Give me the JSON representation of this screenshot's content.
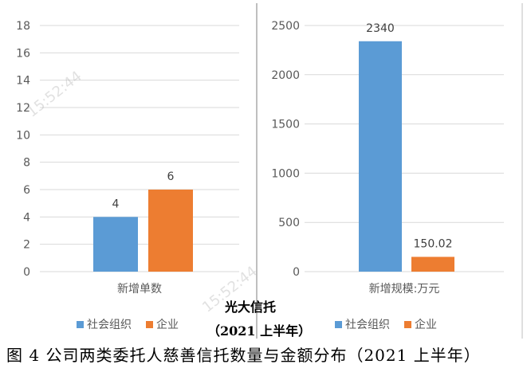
{
  "chart_data": [
    {
      "type": "bar",
      "categories": [
        "新增单数"
      ],
      "series": [
        {
          "name": "社会组织",
          "values": [
            4
          ]
        },
        {
          "name": "企业",
          "values": [
            6
          ]
        }
      ],
      "ylim": [
        0,
        18
      ],
      "yticks": [
        0,
        2,
        4,
        6,
        8,
        10,
        12,
        14,
        16,
        18
      ],
      "data_labels": [
        "4",
        "6"
      ],
      "grid": true
    },
    {
      "type": "bar",
      "categories": [
        "新增规模:万元"
      ],
      "series": [
        {
          "name": "社会组织",
          "values": [
            2340
          ]
        },
        {
          "name": "企业",
          "values": [
            150.02
          ]
        }
      ],
      "ylim": [
        0,
        2500
      ],
      "yticks": [
        0,
        500,
        1000,
        1500,
        2000,
        2500
      ],
      "data_labels": [
        "2340",
        "150.02"
      ],
      "grid": true
    }
  ],
  "colors": {
    "series_1": "#5B9BD5",
    "series_2": "#ED7D31",
    "grid": "#D9D9D9",
    "divider": "#BFBFBF"
  },
  "overlay_title": {
    "line1": "光大信托",
    "line2": "（2021 上半年）"
  },
  "legend": {
    "left": [
      "社会组织",
      "企业"
    ],
    "right": [
      "社会组织",
      "企业"
    ]
  },
  "watermark": {
    "left": "15:52:44",
    "right": "15:52:44"
  },
  "caption": "图 4  公司两类委托人慈善信托数量与金额分布（2021 上半年）"
}
